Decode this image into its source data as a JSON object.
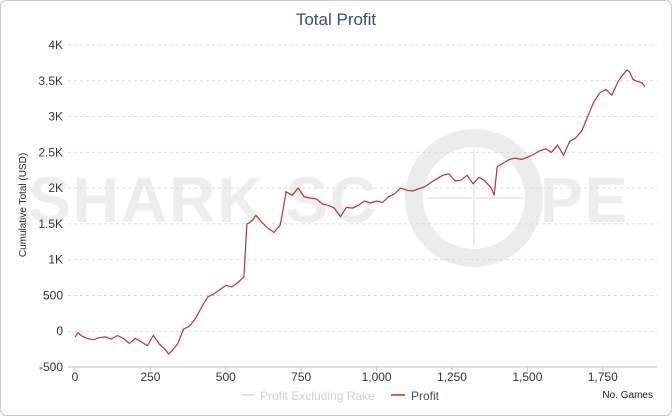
{
  "chart_data": {
    "type": "line",
    "title": "Total Profit",
    "xlabel": "No. Games",
    "ylabel": "Cumulative Total (USD)",
    "xlim": [
      0,
      1900
    ],
    "ylim": [
      -500,
      4000
    ],
    "xticks": [
      0,
      250,
      500,
      750,
      1000,
      1250,
      1500,
      1750
    ],
    "xtick_labels": [
      "0",
      "250",
      "500",
      "750",
      "1,000",
      "1,250",
      "1,500",
      "1,750"
    ],
    "yticks": [
      -500,
      0,
      500,
      1000,
      1500,
      2000,
      2500,
      3000,
      3500,
      4000
    ],
    "ytick_labels": [
      "-500",
      "0",
      "500",
      "1K",
      "1.5K",
      "2K",
      "2.5K",
      "3K",
      "3.5K",
      "4K"
    ],
    "grid": true,
    "legend_position": "bottom",
    "watermark": "SHARKSCOPE",
    "series": [
      {
        "name": "Profit Excluding Rake",
        "color": "#d6d6d6",
        "x": [],
        "values": []
      },
      {
        "name": "Profit",
        "color": "#a8393a",
        "x": [
          0,
          10,
          20,
          40,
          60,
          80,
          100,
          120,
          140,
          160,
          180,
          200,
          220,
          240,
          260,
          280,
          300,
          310,
          320,
          340,
          360,
          380,
          400,
          420,
          440,
          460,
          480,
          500,
          520,
          540,
          560,
          570,
          580,
          590,
          600,
          620,
          640,
          660,
          680,
          690,
          700,
          720,
          740,
          760,
          780,
          800,
          820,
          840,
          860,
          880,
          900,
          920,
          940,
          960,
          980,
          1000,
          1020,
          1040,
          1060,
          1080,
          1100,
          1120,
          1140,
          1160,
          1180,
          1200,
          1220,
          1240,
          1260,
          1280,
          1300,
          1320,
          1340,
          1360,
          1380,
          1390,
          1400,
          1420,
          1440,
          1460,
          1480,
          1500,
          1520,
          1540,
          1560,
          1580,
          1600,
          1620,
          1640,
          1660,
          1680,
          1700,
          1720,
          1740,
          1760,
          1780,
          1800,
          1810,
          1820,
          1830,
          1840,
          1850,
          1860,
          1880,
          1890
        ],
        "values": [
          -80,
          -20,
          -60,
          -100,
          -120,
          -90,
          -80,
          -110,
          -60,
          -100,
          -170,
          -100,
          -150,
          -200,
          -60,
          -180,
          -260,
          -320,
          -280,
          -180,
          30,
          70,
          180,
          340,
          480,
          520,
          580,
          640,
          620,
          680,
          760,
          1500,
          1520,
          1560,
          1620,
          1520,
          1440,
          1380,
          1480,
          1700,
          1950,
          1900,
          2000,
          1880,
          1860,
          1850,
          1780,
          1760,
          1720,
          1600,
          1730,
          1720,
          1760,
          1820,
          1790,
          1820,
          1800,
          1880,
          1920,
          2000,
          1970,
          1960,
          1990,
          2020,
          2080,
          2130,
          2180,
          2200,
          2100,
          2110,
          2180,
          2060,
          2150,
          2100,
          2000,
          1900,
          2300,
          2350,
          2400,
          2420,
          2400,
          2430,
          2470,
          2520,
          2550,
          2500,
          2600,
          2460,
          2650,
          2700,
          2800,
          3000,
          3200,
          3330,
          3380,
          3300,
          3480,
          3550,
          3600,
          3650,
          3620,
          3520,
          3500,
          3470,
          3420
        ]
      }
    ]
  }
}
